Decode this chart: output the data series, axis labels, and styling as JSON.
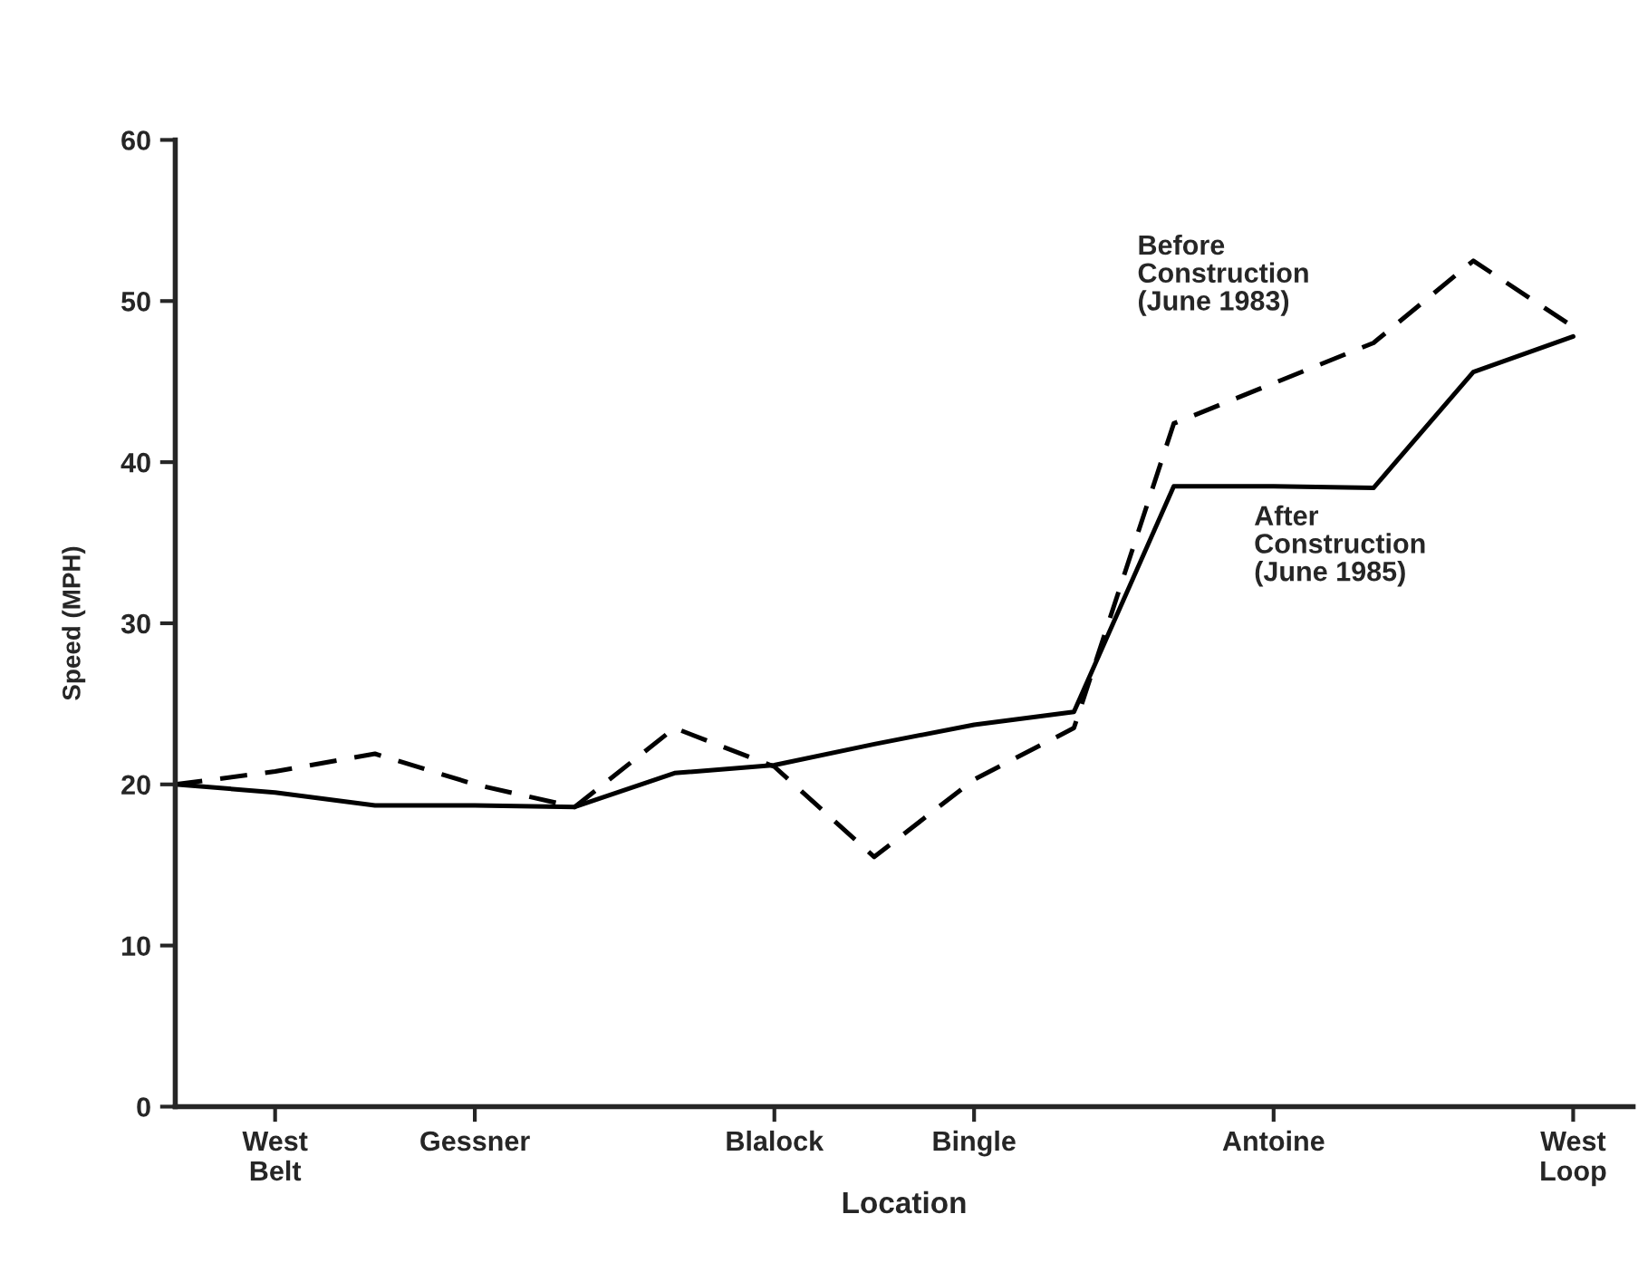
{
  "chart_data": {
    "type": "line",
    "xlabel": "Location",
    "ylabel": "Speed (MPH)",
    "ylim": [
      0,
      60
    ],
    "yticks": [
      0,
      10,
      20,
      30,
      40,
      50,
      60
    ],
    "categories": [
      null,
      "West\nBelt",
      null,
      "Gessner",
      null,
      null,
      "Blalock",
      null,
      "Bingle",
      null,
      null,
      "Antoine",
      null,
      null,
      "West\nLoop"
    ],
    "grid": false,
    "marker": "none",
    "series": [
      {
        "color": "#000000",
        "line_style": "dashed",
        "values": [
          20.0,
          20.8,
          21.9,
          20.0,
          18.6,
          23.5,
          21.1,
          15.5,
          20.3,
          23.5,
          42.4,
          44.9,
          47.4,
          52.5,
          48.4
        ]
      },
      {
        "color": "#000000",
        "line_style": "solid",
        "values": [
          20.0,
          19.5,
          18.7,
          18.7,
          18.6,
          20.7,
          21.2,
          22.5,
          23.7,
          24.5,
          38.5,
          38.5,
          38.4,
          45.6,
          47.8
        ]
      }
    ],
    "annotations": [
      "Before\nConstruction\n(June 1983)",
      "After\nConstruction\n(June 1985)"
    ]
  }
}
